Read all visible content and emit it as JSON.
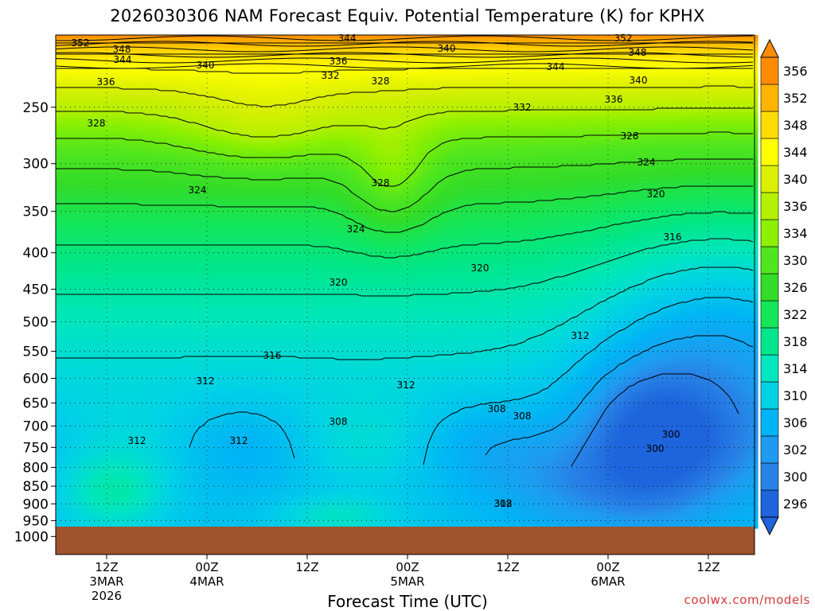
{
  "chart_data": {
    "type": "heatmap",
    "title": "2026030306 NAM Forecast Equiv. Potential Temperature (K) for KPHX",
    "xlabel": "Forecast Time (UTC)",
    "credit": "coolwx.com/models",
    "y_axis": {
      "scale": "log-pressure",
      "pressure_ticks": [
        "250",
        "300",
        "350",
        "400",
        "450",
        "500",
        "550",
        "600",
        "650",
        "700",
        "750",
        "800",
        "850",
        "900",
        "950",
        "1000"
      ]
    },
    "x_axis": {
      "ticks": [
        {
          "l1": "12Z",
          "l2": "3MAR",
          "l3": "2026"
        },
        {
          "l1": "00Z",
          "l2": "4MAR",
          "l3": ""
        },
        {
          "l1": "12Z",
          "l2": "",
          "l3": ""
        },
        {
          "l1": "00Z",
          "l2": "5MAR",
          "l3": ""
        },
        {
          "l1": "12Z",
          "l2": "",
          "l3": ""
        },
        {
          "l1": "00Z",
          "l2": "6MAR",
          "l3": ""
        },
        {
          "l1": "12Z",
          "l2": "",
          "l3": ""
        }
      ]
    },
    "colorbar": {
      "levels": [
        "296",
        "300",
        "302",
        "306",
        "310",
        "314",
        "318",
        "322",
        "326",
        "330",
        "334",
        "336",
        "340",
        "344",
        "348",
        "352",
        "356"
      ],
      "colors": [
        "#1e64dc",
        "#2882e6",
        "#1e9bf0",
        "#00b4f5",
        "#00d2e6",
        "#00e6be",
        "#00e68c",
        "#14e65a",
        "#32dc28",
        "#50e61e",
        "#8cf000",
        "#b4f000",
        "#dcf000",
        "#ffff00",
        "#ffdc00",
        "#ffb400",
        "#ff8c00"
      ]
    },
    "contour_labels": [
      "352",
      "348",
      "344",
      "344",
      "340",
      "340",
      "336",
      "336",
      "332",
      "328",
      "352",
      "348",
      "344",
      "340",
      "336",
      "332",
      "328",
      "324",
      "328",
      "324",
      "328",
      "324",
      "320",
      "316",
      "320",
      "320",
      "316",
      "312",
      "312",
      "312",
      "312",
      "308",
      "308",
      "308",
      "312",
      "312",
      "300",
      "300",
      "308"
    ],
    "contour_levels_K": [
      300,
      304,
      308,
      312,
      316,
      320,
      324,
      328,
      332,
      336,
      340,
      344,
      348,
      352
    ],
    "surface": "terrain"
  }
}
